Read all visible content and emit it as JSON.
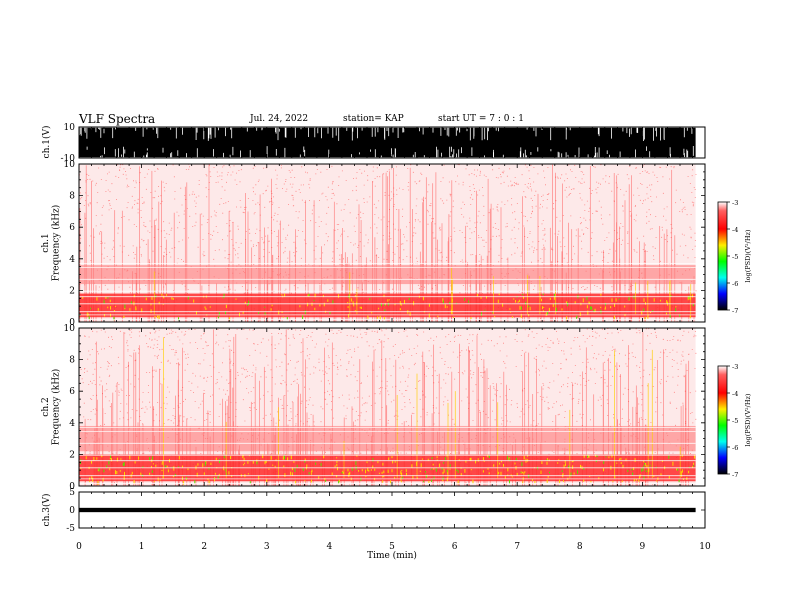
{
  "header": {
    "title": "VLF Spectra",
    "date": "Jul. 24, 2022",
    "station": "station= KAP",
    "start": "start  UT =   7 : 0  : 1"
  },
  "colors": {
    "bg": "#ffffff",
    "axis": "#000000"
  },
  "chart_data": [
    {
      "type": "line",
      "name": "ch1-waveform",
      "ylabel": "ch.1(V)",
      "ylim": [
        -10,
        10
      ],
      "yticks": [
        "10",
        "-10"
      ],
      "xlim": [
        0,
        10
      ],
      "description": "raw waveform saturating between -10 and 10 V until ~9.85 min"
    },
    {
      "type": "heatmap",
      "name": "ch1-spectrogram",
      "ylabel": "ch.1\nFrequency  (kHz)",
      "ylabel_lines": [
        "ch.1",
        "Frequency  (kHz)"
      ],
      "ylim": [
        0,
        10
      ],
      "yticks": [
        "0",
        "2",
        "4",
        "6",
        "8",
        "10"
      ],
      "xlim": [
        0,
        10
      ],
      "data_end_min": 9.85,
      "bands_khz": [
        [
          0.3,
          1.8
        ],
        [
          2.4,
          3.6
        ]
      ],
      "colorbar": {
        "label": "log(PSD)(V²/Hz)",
        "range": [
          -7,
          -3
        ],
        "ticks": [
          "-3",
          "-4",
          "-5",
          "-6",
          "-7"
        ]
      }
    },
    {
      "type": "heatmap",
      "name": "ch2-spectrogram",
      "ylabel": "ch.2\nFrequency  (kHz)",
      "ylabel_lines": [
        "ch.2",
        "Frequency  (kHz)"
      ],
      "ylim": [
        0,
        10
      ],
      "yticks": [
        "0",
        "2",
        "4",
        "6",
        "8",
        "10"
      ],
      "xlim": [
        0,
        10
      ],
      "data_end_min": 9.85,
      "bands_khz": [
        [
          0.3,
          2.0
        ],
        [
          2.2,
          3.8
        ]
      ],
      "colorbar": {
        "label": "log(PSD)(V²/Hz)",
        "range": [
          -7,
          -3
        ],
        "ticks": [
          "-3",
          "-4",
          "-5",
          "-6",
          "-7"
        ]
      }
    },
    {
      "type": "line",
      "name": "ch3-waveform",
      "ylabel": "ch.3(V)",
      "ylim": [
        -5,
        5
      ],
      "yticks": [
        "5",
        "0",
        "-5"
      ],
      "xlim": [
        0,
        10
      ],
      "level_v": 0,
      "amplitude_v": 0.6
    }
  ],
  "xaxis": {
    "label": "Time  (min)",
    "ticks": [
      "0",
      "1",
      "2",
      "3",
      "4",
      "5",
      "6",
      "7",
      "8",
      "9",
      "10"
    ],
    "range": [
      0,
      10
    ]
  }
}
